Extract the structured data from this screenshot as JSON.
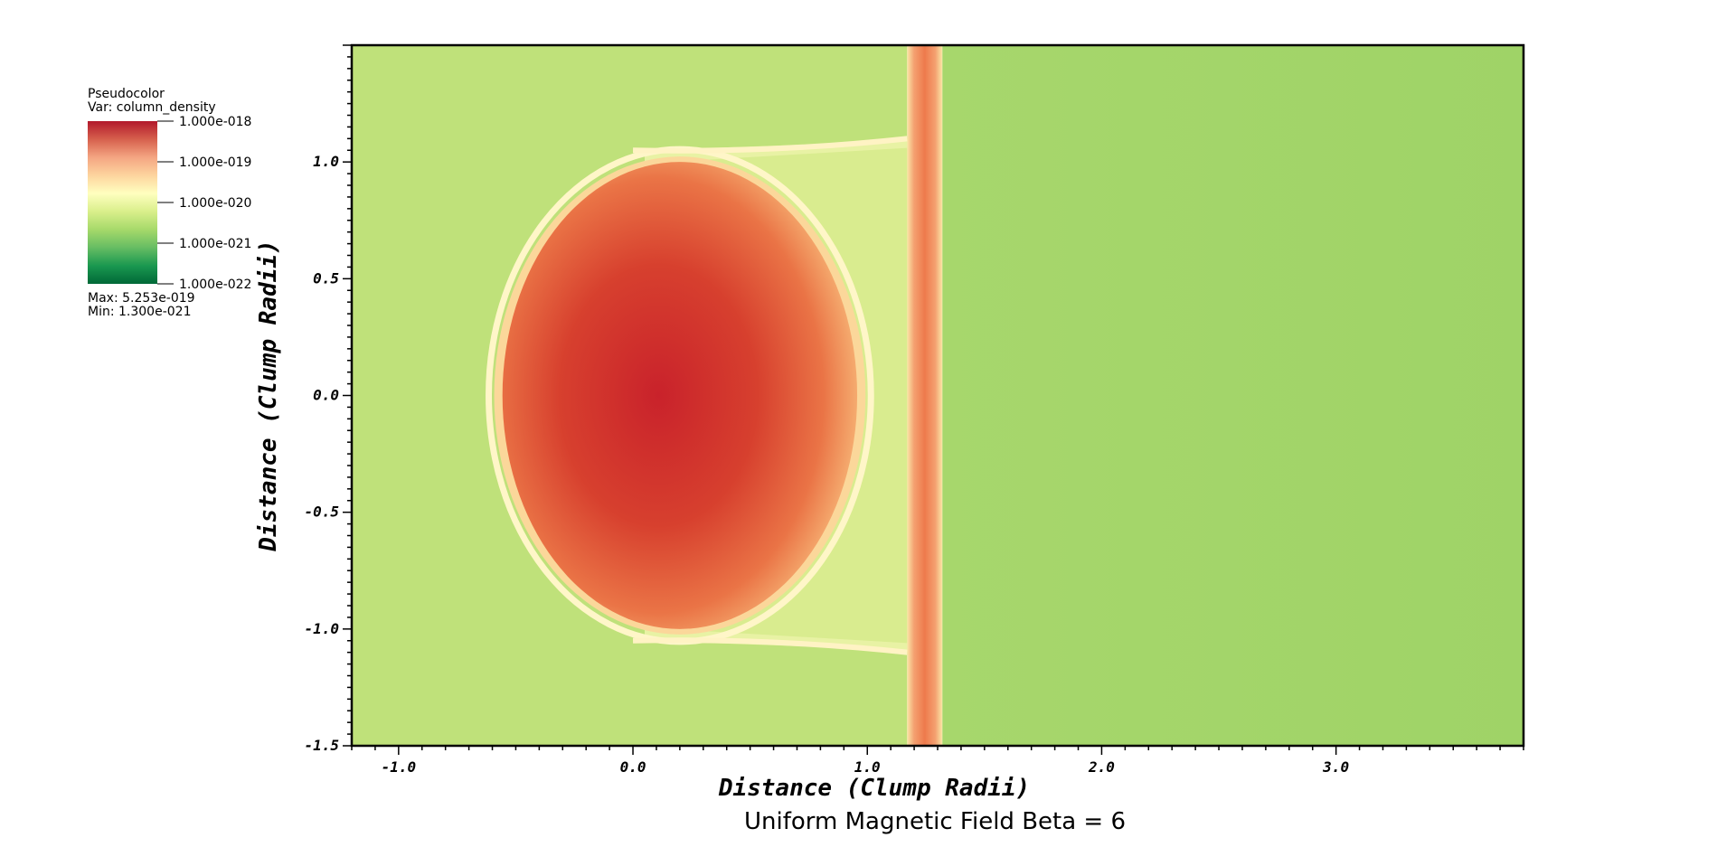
{
  "legend": {
    "title": "Pseudocolor",
    "var_label": "Var: column_density",
    "ticks": [
      "1.000e-018",
      "1.000e-019",
      "1.000e-020",
      "1.000e-021",
      "1.000e-022"
    ],
    "max_label": "Max:  5.253e-019",
    "min_label": "Min:  1.300e-021",
    "colors": [
      "#b2182b",
      "#d6604d",
      "#f4a582",
      "#fdd49e",
      "#ffffbf",
      "#d9ef8b",
      "#a6d96a",
      "#66bd63",
      "#1a9850",
      "#006837"
    ]
  },
  "chart_data": {
    "type": "heatmap",
    "title": "Uniform Magnetic Field Beta = 6",
    "xlabel": "Distance (Clump Radii)",
    "ylabel": "Distance (Clump Radii)",
    "xlim": [
      -1.2,
      3.8
    ],
    "ylim": [
      -1.5,
      1.5
    ],
    "x_ticks": [
      -1.0,
      0.0,
      1.0,
      2.0,
      3.0
    ],
    "x_tick_labels": [
      "-1.0",
      "0.0",
      "1.0",
      "2.0",
      "3.0"
    ],
    "y_ticks": [
      1.0,
      0.5,
      0.0,
      -0.5,
      -1.0,
      -1.5
    ],
    "y_tick_labels": [
      "1.0",
      "0.5",
      "0.0",
      "-0.5",
      "-1.0",
      "-1.5"
    ],
    "colormap": "RdYlGn (reversed, log scale)",
    "scale": "log",
    "color_range": [
      1e-22,
      1e-18
    ],
    "variable": "column_density",
    "max": 5.253e-19,
    "min": 1.3e-21,
    "background_left_color": "#bfe17a",
    "background_right_color": "#a2d56a",
    "features": {
      "clump": {
        "center": [
          0.0,
          0.0
        ],
        "peak_color": "#cc2a2b",
        "edge_color": "#f6b173"
      },
      "shell": {
        "x_left": -0.65,
        "x_right": 1.0,
        "y_top": 1.05,
        "y_bottom": -1.05
      },
      "vertical_band": {
        "x_min": 1.17,
        "x_max": 1.32,
        "color": "#f07a4a"
      }
    }
  }
}
